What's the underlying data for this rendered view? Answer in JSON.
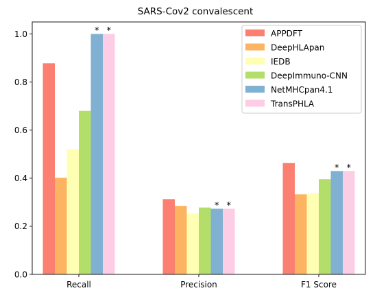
{
  "chart_data": {
    "type": "bar",
    "title": "SARS-Cov2 convalescent",
    "xlabel": "",
    "ylabel": "",
    "categories": [
      "Recall",
      "Precision",
      "F1 Score"
    ],
    "ylim": [
      0,
      1.05
    ],
    "yticks": [
      "0.0",
      "0.2",
      "0.4",
      "0.6",
      "0.8",
      "1.0"
    ],
    "yticks_values": [
      0,
      0.2,
      0.4,
      0.6,
      0.8,
      1.0
    ],
    "grid": false,
    "legend_position": "top-right",
    "series": [
      {
        "name": "APPDFT",
        "color": "#fb8072",
        "values": [
          0.878,
          0.313,
          0.463
        ]
      },
      {
        "name": "DeepHLApan",
        "color": "#fdb462",
        "values": [
          0.402,
          0.285,
          0.333
        ]
      },
      {
        "name": "IEDB",
        "color": "#ffffb3",
        "values": [
          0.521,
          0.253,
          0.338
        ]
      },
      {
        "name": "DeepImmuno-CNN",
        "color": "#b3de69",
        "values": [
          0.68,
          0.278,
          0.396
        ]
      },
      {
        "name": "NetMHCpan4.1",
        "color": "#80b1d3",
        "values": [
          1.0,
          0.273,
          0.43
        ]
      },
      {
        "name": "TransPHLA",
        "color": "#fccde5",
        "values": [
          1.0,
          0.273,
          0.43
        ]
      }
    ],
    "annotations": [
      {
        "text": "*",
        "series": 4,
        "category": 0
      },
      {
        "text": "*",
        "series": 5,
        "category": 0
      },
      {
        "text": "*",
        "series": 4,
        "category": 1
      },
      {
        "text": "*",
        "series": 5,
        "category": 1
      },
      {
        "text": "*",
        "series": 4,
        "category": 2
      },
      {
        "text": "*",
        "series": 5,
        "category": 2
      }
    ]
  }
}
